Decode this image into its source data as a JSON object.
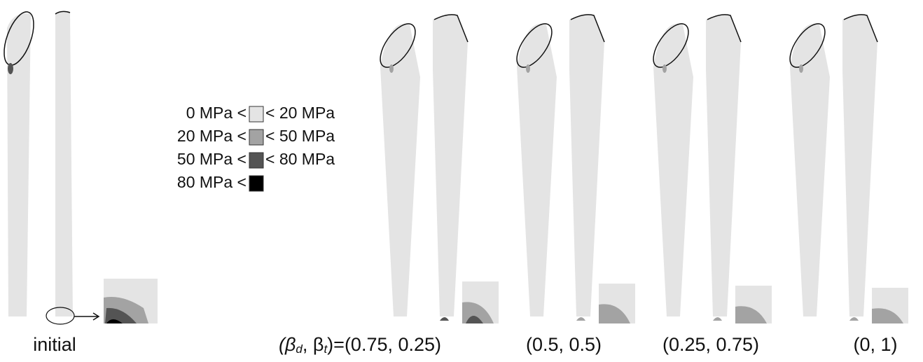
{
  "legend": {
    "items": [
      {
        "low": "0 MPa <",
        "high": "< 20 MPa",
        "color": "#e4e4e4"
      },
      {
        "low": "20 MPa <",
        "high": "< 50 MPa",
        "color": "#a3a3a3"
      },
      {
        "low": "50 MPa <",
        "high": "< 80 MPa",
        "color": "#545454"
      },
      {
        "low": "80 MPa <",
        "color": "#000000"
      }
    ]
  },
  "captions": {
    "initial": "initial",
    "parameter_label": {
      "start": "(β",
      "sub_d": "d",
      "mid": ", β",
      "sub_t": "t",
      "end": ")="
    },
    "cases": [
      "(0.75, 0.25)",
      "(0.5, 0.5)",
      "(0.25, 0.75)",
      "(0, 1)"
    ]
  }
}
